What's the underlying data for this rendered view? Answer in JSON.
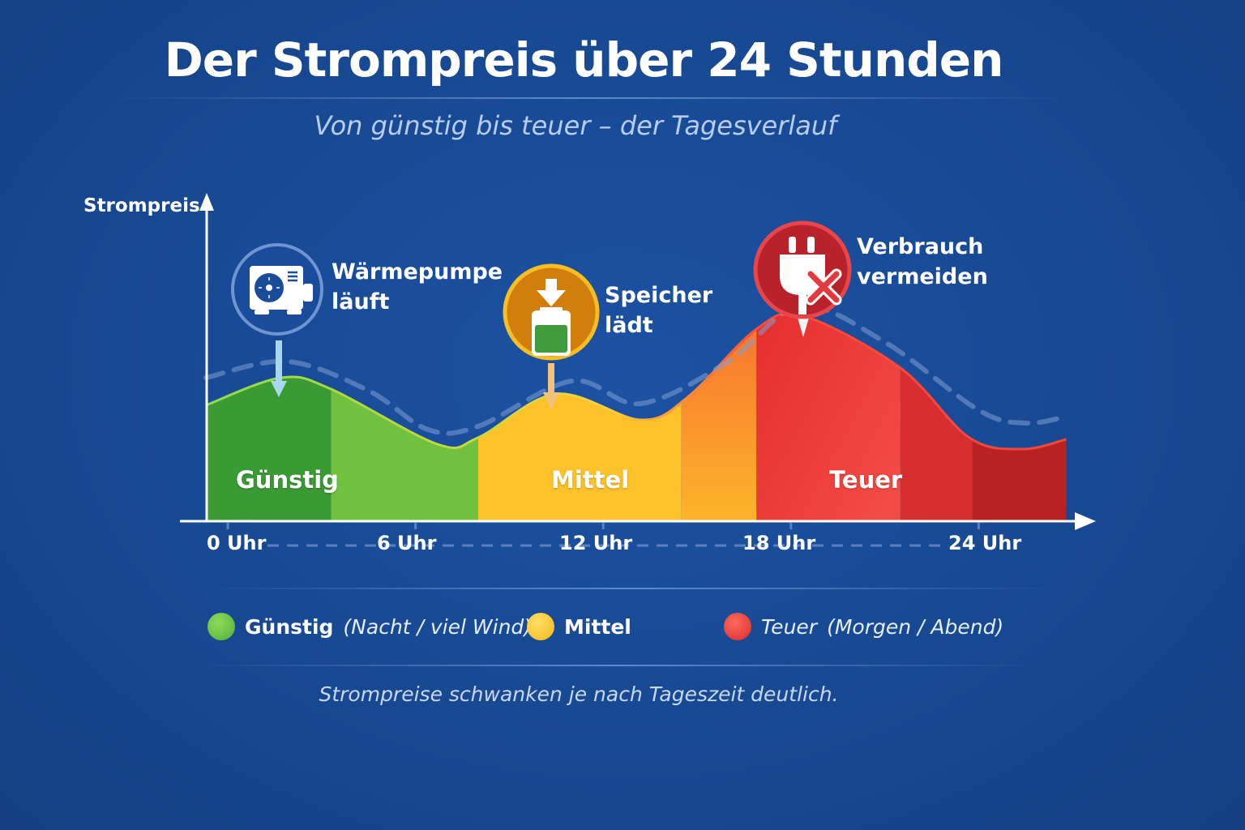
{
  "title": "Der Strompreis über 24 Stunden",
  "subtitle": "Von günstig bis teuer – der Tagesverlauf",
  "footer": "Strompreise schwanken je nach Tageszeit deutlich.",
  "chart_data": {
    "type": "area",
    "ylabel": "Strompreis",
    "xlabel": "",
    "x_ticks": [
      "0 Uhr",
      "6 Uhr",
      "12 Uhr",
      "18 Uhr",
      "24 Uhr"
    ],
    "x_tick_values": [
      0,
      6,
      12,
      18,
      24
    ],
    "y_ticks": [],
    "grid": false,
    "series": [
      {
        "style": "filled-area",
        "x": [
          -0.7,
          1.7,
          3.3,
          6.7,
          8.0,
          10.5,
          13.2,
          14.7,
          16.9,
          18.4,
          21.5,
          23.7,
          25.4,
          26.8
        ],
        "y": [
          35.5,
          44,
          40.5,
          23.5,
          25.5,
          39,
          31,
          38,
          59,
          63,
          47,
          25.5,
          22,
          25
        ]
      },
      {
        "style": "dashed-line",
        "x": [
          -0.7,
          1.9,
          4.5,
          6.4,
          8.0,
          11.0,
          13.2,
          16.0,
          18.3,
          21.0,
          24.0,
          25.5,
          26.8
        ],
        "y": [
          44,
          49,
          40,
          28,
          29,
          43,
          36,
          49,
          66,
          55,
          34,
          30,
          32
        ]
      }
    ],
    "zones": [
      {
        "label": "Günstig",
        "from": -0.7,
        "to": 8.0,
        "color": "#4fae3a"
      },
      {
        "label": "Mittel",
        "from": 8.0,
        "to": 16.9,
        "color": "#fdc12a"
      },
      {
        "label": "Teuer",
        "from": 16.9,
        "to": 26.8,
        "color": "#e83a36"
      }
    ],
    "annotations": [
      {
        "x": 1.7,
        "icon": "heat-pump-icon",
        "lines": [
          "Wärmepumpe",
          "läuft"
        ],
        "color": "#1e4f9e"
      },
      {
        "x": 10.5,
        "icon": "battery-charging-icon",
        "lines": [
          "Speicher",
          "lädt"
        ],
        "color": "#d27e0c"
      },
      {
        "x": 18.4,
        "icon": "unplug-icon",
        "lines": [
          "Verbrauch",
          "vermeiden"
        ],
        "color": "#c0262a"
      }
    ],
    "legend": [
      {
        "label": "Günstig",
        "detail": "(Nacht / viel Wind)",
        "color": "#5cbf3c"
      },
      {
        "label": "Mittel",
        "detail": "",
        "color": "#fdc12a"
      },
      {
        "label": "Teuer",
        "detail": "(Morgen / Abend)",
        "color": "#e83a36"
      }
    ],
    "legend_position": "bottom"
  }
}
